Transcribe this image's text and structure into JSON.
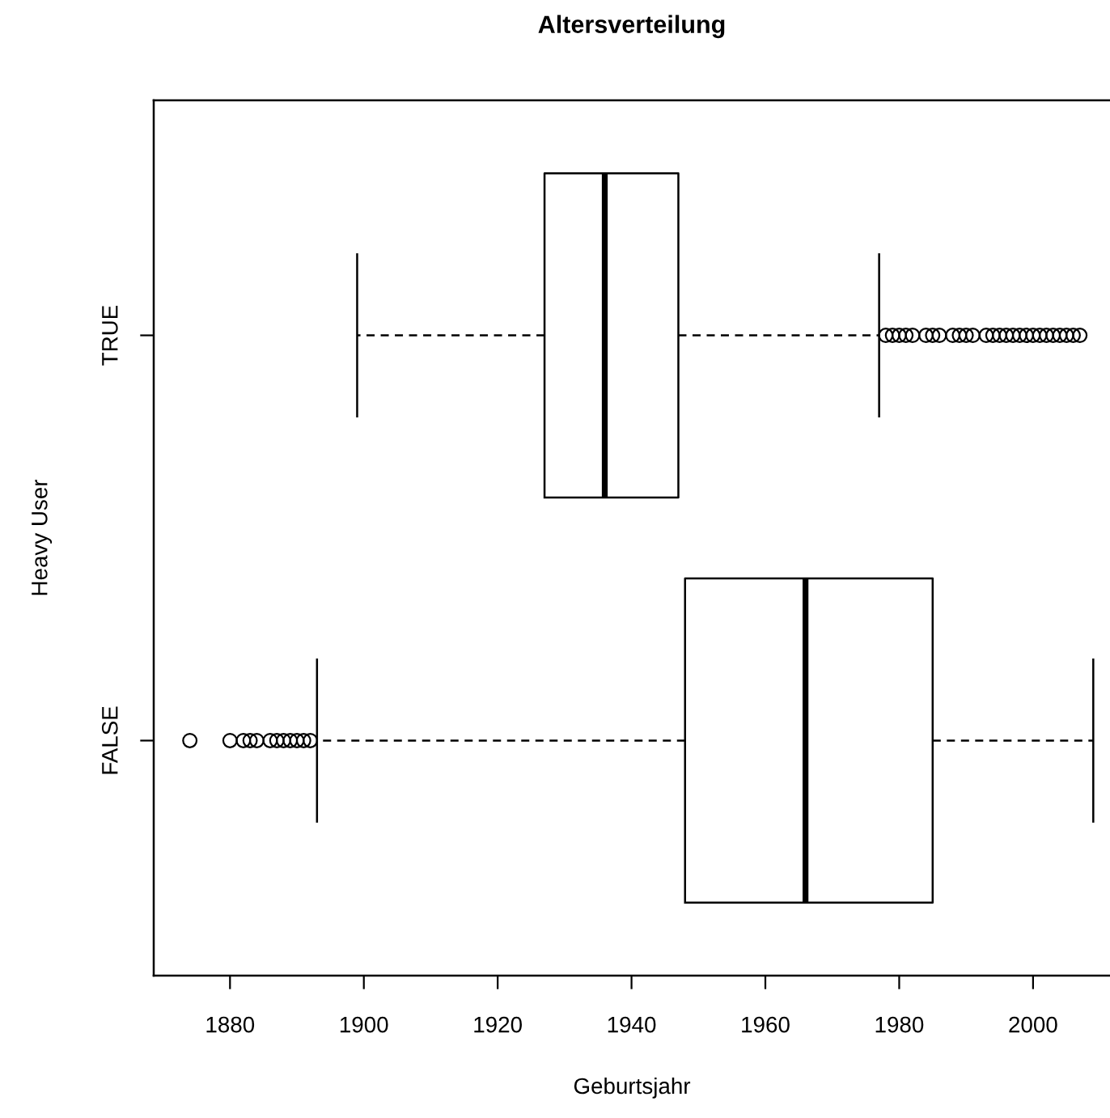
{
  "chart_data": {
    "type": "box",
    "title": "Altersverteilung",
    "xlabel": "Geburtsjahr",
    "ylabel": "Heavy User",
    "orientation": "horizontal",
    "categories": [
      "TRUE",
      "FALSE"
    ],
    "boxes": [
      {
        "low": 1899,
        "q1": 1927,
        "median": 1936,
        "q3": 1947,
        "high": 1977,
        "outliers": [
          1978,
          1979,
          1980,
          1981,
          1982,
          1984,
          1985,
          1986,
          1988,
          1989,
          1990,
          1991,
          1993,
          1994,
          1995,
          1996,
          1997,
          1998,
          1999,
          2000,
          2001,
          2002,
          2003,
          2004,
          2005,
          2006,
          2007
        ]
      },
      {
        "low": 1893,
        "q1": 1948,
        "median": 1966,
        "q3": 1985,
        "high": 2009,
        "outliers": [
          1874,
          1880,
          1882,
          1883,
          1884,
          1886,
          1887,
          1888,
          1889,
          1890,
          1891,
          1892
        ]
      }
    ],
    "color": "#000000",
    "xlim": [
      1868.6,
      2011.5
    ],
    "xticks": [
      1880,
      1900,
      1920,
      1940,
      1960,
      1980,
      2000
    ],
    "marker": "circle",
    "grid": false
  }
}
